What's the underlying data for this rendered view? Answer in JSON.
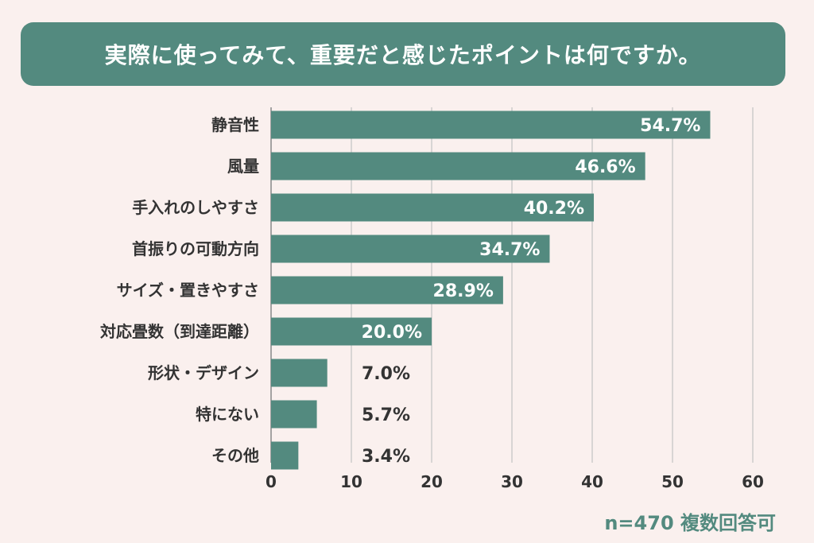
{
  "header": {
    "title": "実際に使ってみて、重要だと感じたポイントは何ですか。"
  },
  "footnote": "n=470 複数回答可",
  "colors": {
    "bar": "#538a7f",
    "background": "#faf0ee",
    "grid": "#cccccc",
    "text": "#333333"
  },
  "chart_data": {
    "type": "bar",
    "orientation": "horizontal",
    "categories": [
      "静音性",
      "風量",
      "手入れのしやすさ",
      "首振りの可動方向",
      "サイズ・置きやすさ",
      "対応畳数（到達距離）",
      "形状・デザイン",
      "特にない",
      "その他"
    ],
    "values": [
      54.7,
      46.6,
      40.2,
      34.7,
      28.9,
      20.0,
      7.0,
      5.7,
      3.4
    ],
    "value_labels": [
      "54.7%",
      "46.6%",
      "40.2%",
      "34.7%",
      "28.9%",
      "20.0%",
      "7.0%",
      "5.7%",
      "3.4%"
    ],
    "xlim": [
      0,
      60
    ],
    "xticks": [
      0,
      10,
      20,
      30,
      40,
      50,
      60
    ],
    "grid": true
  }
}
